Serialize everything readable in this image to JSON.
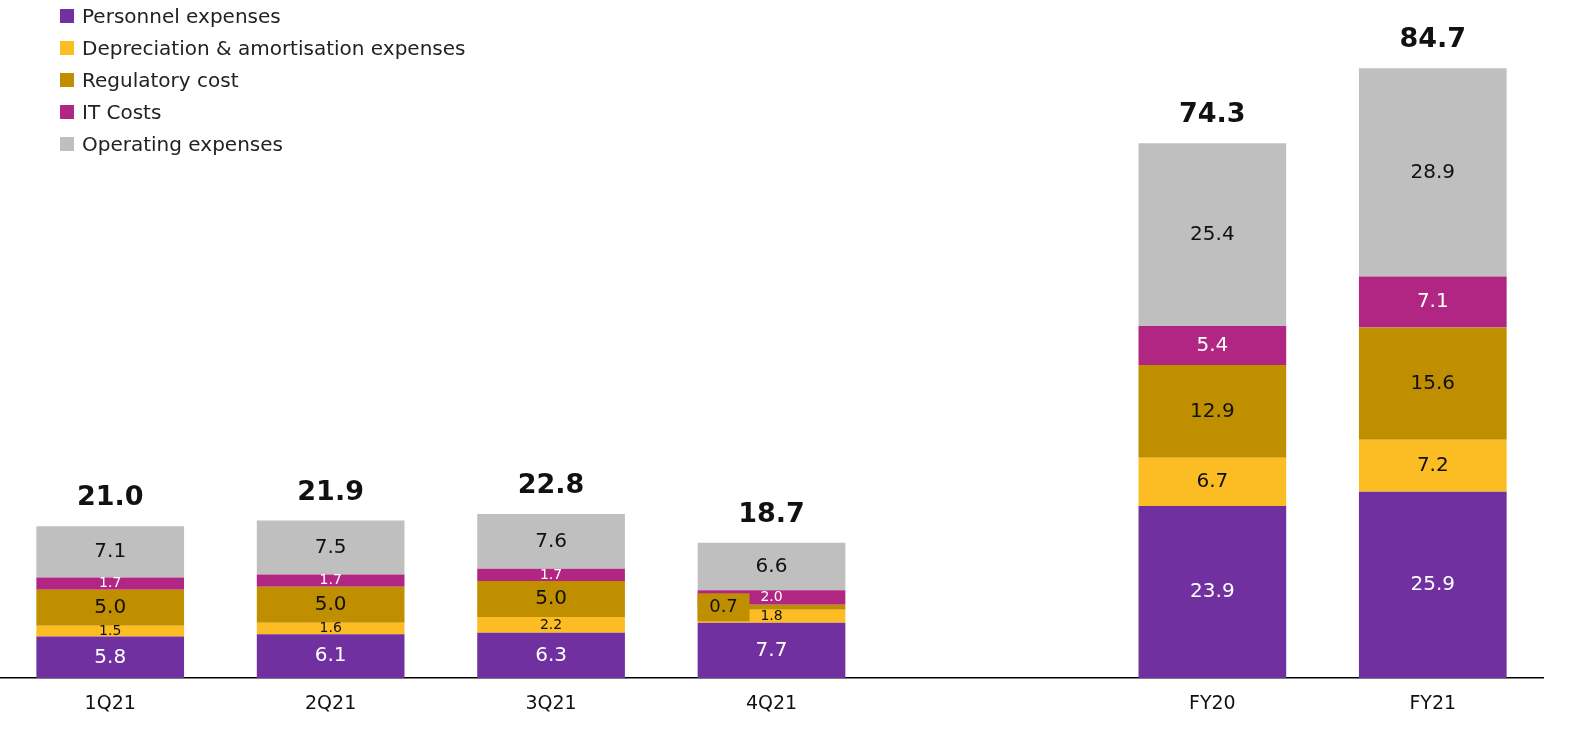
{
  "chart_data": {
    "type": "bar",
    "stacked": true,
    "legend": "top left",
    "grid": false,
    "categories": [
      "1Q21",
      "2Q21",
      "3Q21",
      "4Q21",
      null,
      "FY20",
      "FY21"
    ],
    "series": [
      {
        "name": "Personnel expenses",
        "color": "#7030a0",
        "values": [
          5.8,
          6.1,
          6.3,
          7.7,
          null,
          23.9,
          25.9
        ],
        "value_labels": [
          "5.8",
          "6.1",
          "6.3",
          "7.7",
          null,
          "23.9",
          "25.9"
        ]
      },
      {
        "name": "Depreciation & amortisation expenses",
        "color": "#fbbd23",
        "values": [
          1.5,
          1.6,
          2.2,
          1.8,
          null,
          6.7,
          7.2
        ],
        "value_labels": [
          "1.5",
          "1.6",
          "2.2",
          "1.8",
          null,
          "6.7",
          "7.2"
        ]
      },
      {
        "name": "Regulatory cost",
        "color": "#bf8f00",
        "values": [
          5.0,
          5.0,
          5.0,
          0.7,
          null,
          12.9,
          15.6
        ],
        "value_labels": [
          "5.0",
          "5.0",
          "5.0",
          "0.7",
          null,
          "12.9",
          "15.6"
        ]
      },
      {
        "name": "IT Costs",
        "color": "#b02682",
        "values": [
          1.7,
          1.7,
          1.7,
          2.0,
          null,
          5.4,
          7.1
        ],
        "value_labels": [
          "1.7",
          "1.7",
          "1.7",
          "2.0",
          null,
          "5.4",
          "7.1"
        ]
      },
      {
        "name": "Operating expenses",
        "color": "#bfbfbf",
        "values": [
          7.1,
          7.5,
          7.6,
          6.6,
          null,
          25.4,
          28.9
        ],
        "value_labels": [
          "7.1",
          "7.5",
          "7.6",
          "6.6",
          null,
          "25.4",
          "28.9"
        ]
      }
    ],
    "totals": [
      "21.0",
      "21.9",
      "22.8",
      "18.7",
      null,
      "74.3",
      "84.7"
    ]
  }
}
